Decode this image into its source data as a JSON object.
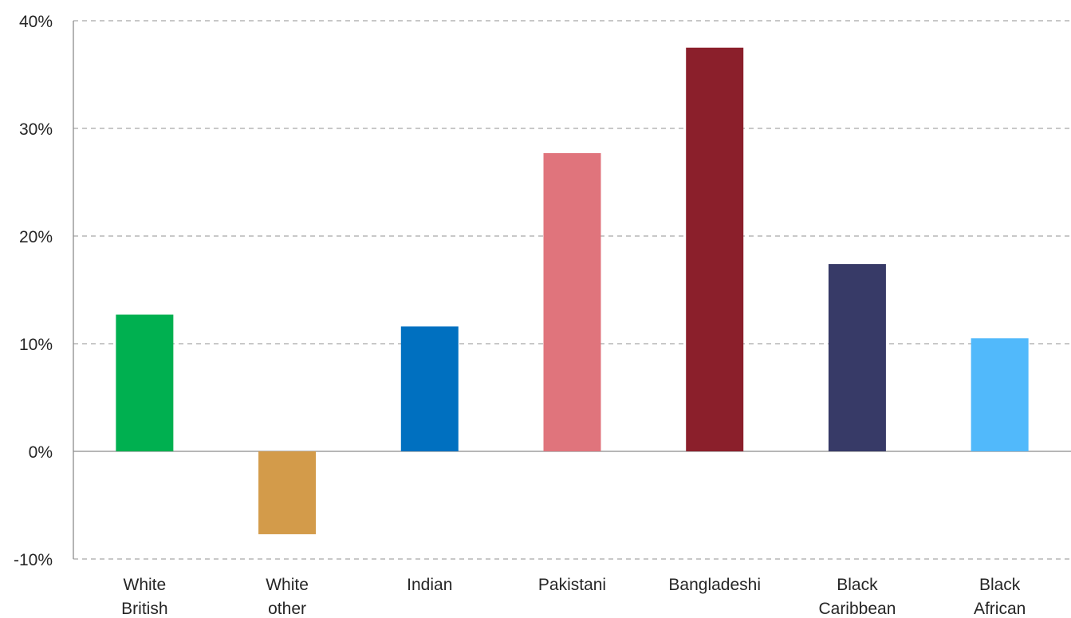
{
  "chart_data": {
    "type": "bar",
    "title": "",
    "xlabel": "",
    "ylabel": "",
    "categories": [
      [
        "White",
        "British"
      ],
      [
        "White",
        "other"
      ],
      [
        "Indian"
      ],
      [
        "Pakistani"
      ],
      [
        "Bangladeshi"
      ],
      [
        "Black",
        "Caribbean"
      ],
      [
        "Black",
        "African"
      ]
    ],
    "values": [
      12.7,
      -7.7,
      11.6,
      27.7,
      37.5,
      17.4,
      10.5
    ],
    "colors": [
      "#00b050",
      "#d39b4a",
      "#0070c0",
      "#e0747c",
      "#8b1f2b",
      "#373a67",
      "#51b9fb"
    ],
    "unit": "%",
    "ylim": [
      -10,
      40
    ],
    "yticks": [
      {
        "value": 40,
        "label": "40%"
      },
      {
        "value": 30,
        "label": "30%"
      },
      {
        "value": 20,
        "label": "20%"
      },
      {
        "value": 10,
        "label": "10%"
      },
      {
        "value": 0,
        "label": "0%"
      },
      {
        "value": -10,
        "label": "-10%"
      }
    ],
    "grid": true,
    "legend": "none"
  }
}
